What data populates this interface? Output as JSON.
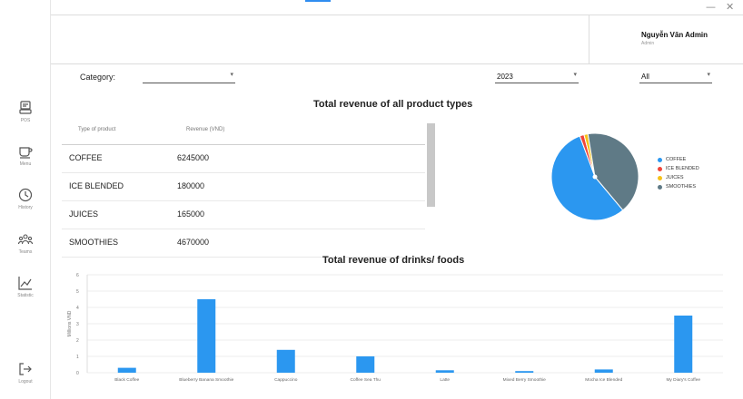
{
  "window": {
    "minimize": "—",
    "close": "✕"
  },
  "sidebar": {
    "items": [
      {
        "label": "POS",
        "icon": "pos-terminal-icon"
      },
      {
        "label": "Menu",
        "icon": "coffee-cup-icon"
      },
      {
        "label": "History",
        "icon": "clock-icon"
      },
      {
        "label": "Teams",
        "icon": "team-icon"
      },
      {
        "label": "Statistic",
        "icon": "chart-line-icon"
      },
      {
        "label": "Logout",
        "icon": "logout-icon"
      }
    ]
  },
  "user": {
    "name": "Nguyễn Văn Admin",
    "role": "Admin"
  },
  "filters": {
    "category_label": "Category:",
    "category_value": "",
    "year_value": "2023",
    "period_value": "All"
  },
  "product_types": {
    "title": "Total revenue of all product types",
    "columns": [
      "Type of product",
      "Revenue (VND)"
    ],
    "rows": [
      {
        "type": "COFFEE",
        "revenue": "6245000"
      },
      {
        "type": "ICE BLENDED",
        "revenue": "180000"
      },
      {
        "type": "JUICES",
        "revenue": "165000"
      },
      {
        "type": "SMOOTHIES",
        "revenue": "4670000"
      }
    ]
  },
  "colors": {
    "coffee": "#2b97f0",
    "ice_blended": "#f0453a",
    "juices": "#f6c21a",
    "smoothies": "#5f7a86",
    "bar": "#2b97f0"
  },
  "chart_data": [
    {
      "type": "pie",
      "labels": [
        "COFFEE",
        "ICE BLENDED",
        "JUICES",
        "SMOOTHIES"
      ],
      "values": [
        6245000,
        180000,
        165000,
        4670000
      ],
      "legend": "right"
    },
    {
      "type": "bar",
      "title": "Total revenue of drinks/ foods",
      "ylabel": "Millions VND",
      "xlabel": "",
      "categories": [
        "Black Coffee",
        "Blueberry Banana Smoothie",
        "Cappuccino",
        "Coffee Sea Thu",
        "Latte",
        "Mixed Berry Smoothie",
        "Mocha Ice Blended",
        "My Diary's Coffee"
      ],
      "values": [
        0.3,
        4.5,
        1.4,
        1.0,
        0.15,
        0.1,
        0.2,
        3.5
      ],
      "yticks": [
        0,
        1,
        2,
        3,
        4,
        5,
        6
      ],
      "ylim": [
        0,
        6
      ],
      "grid": true
    }
  ]
}
